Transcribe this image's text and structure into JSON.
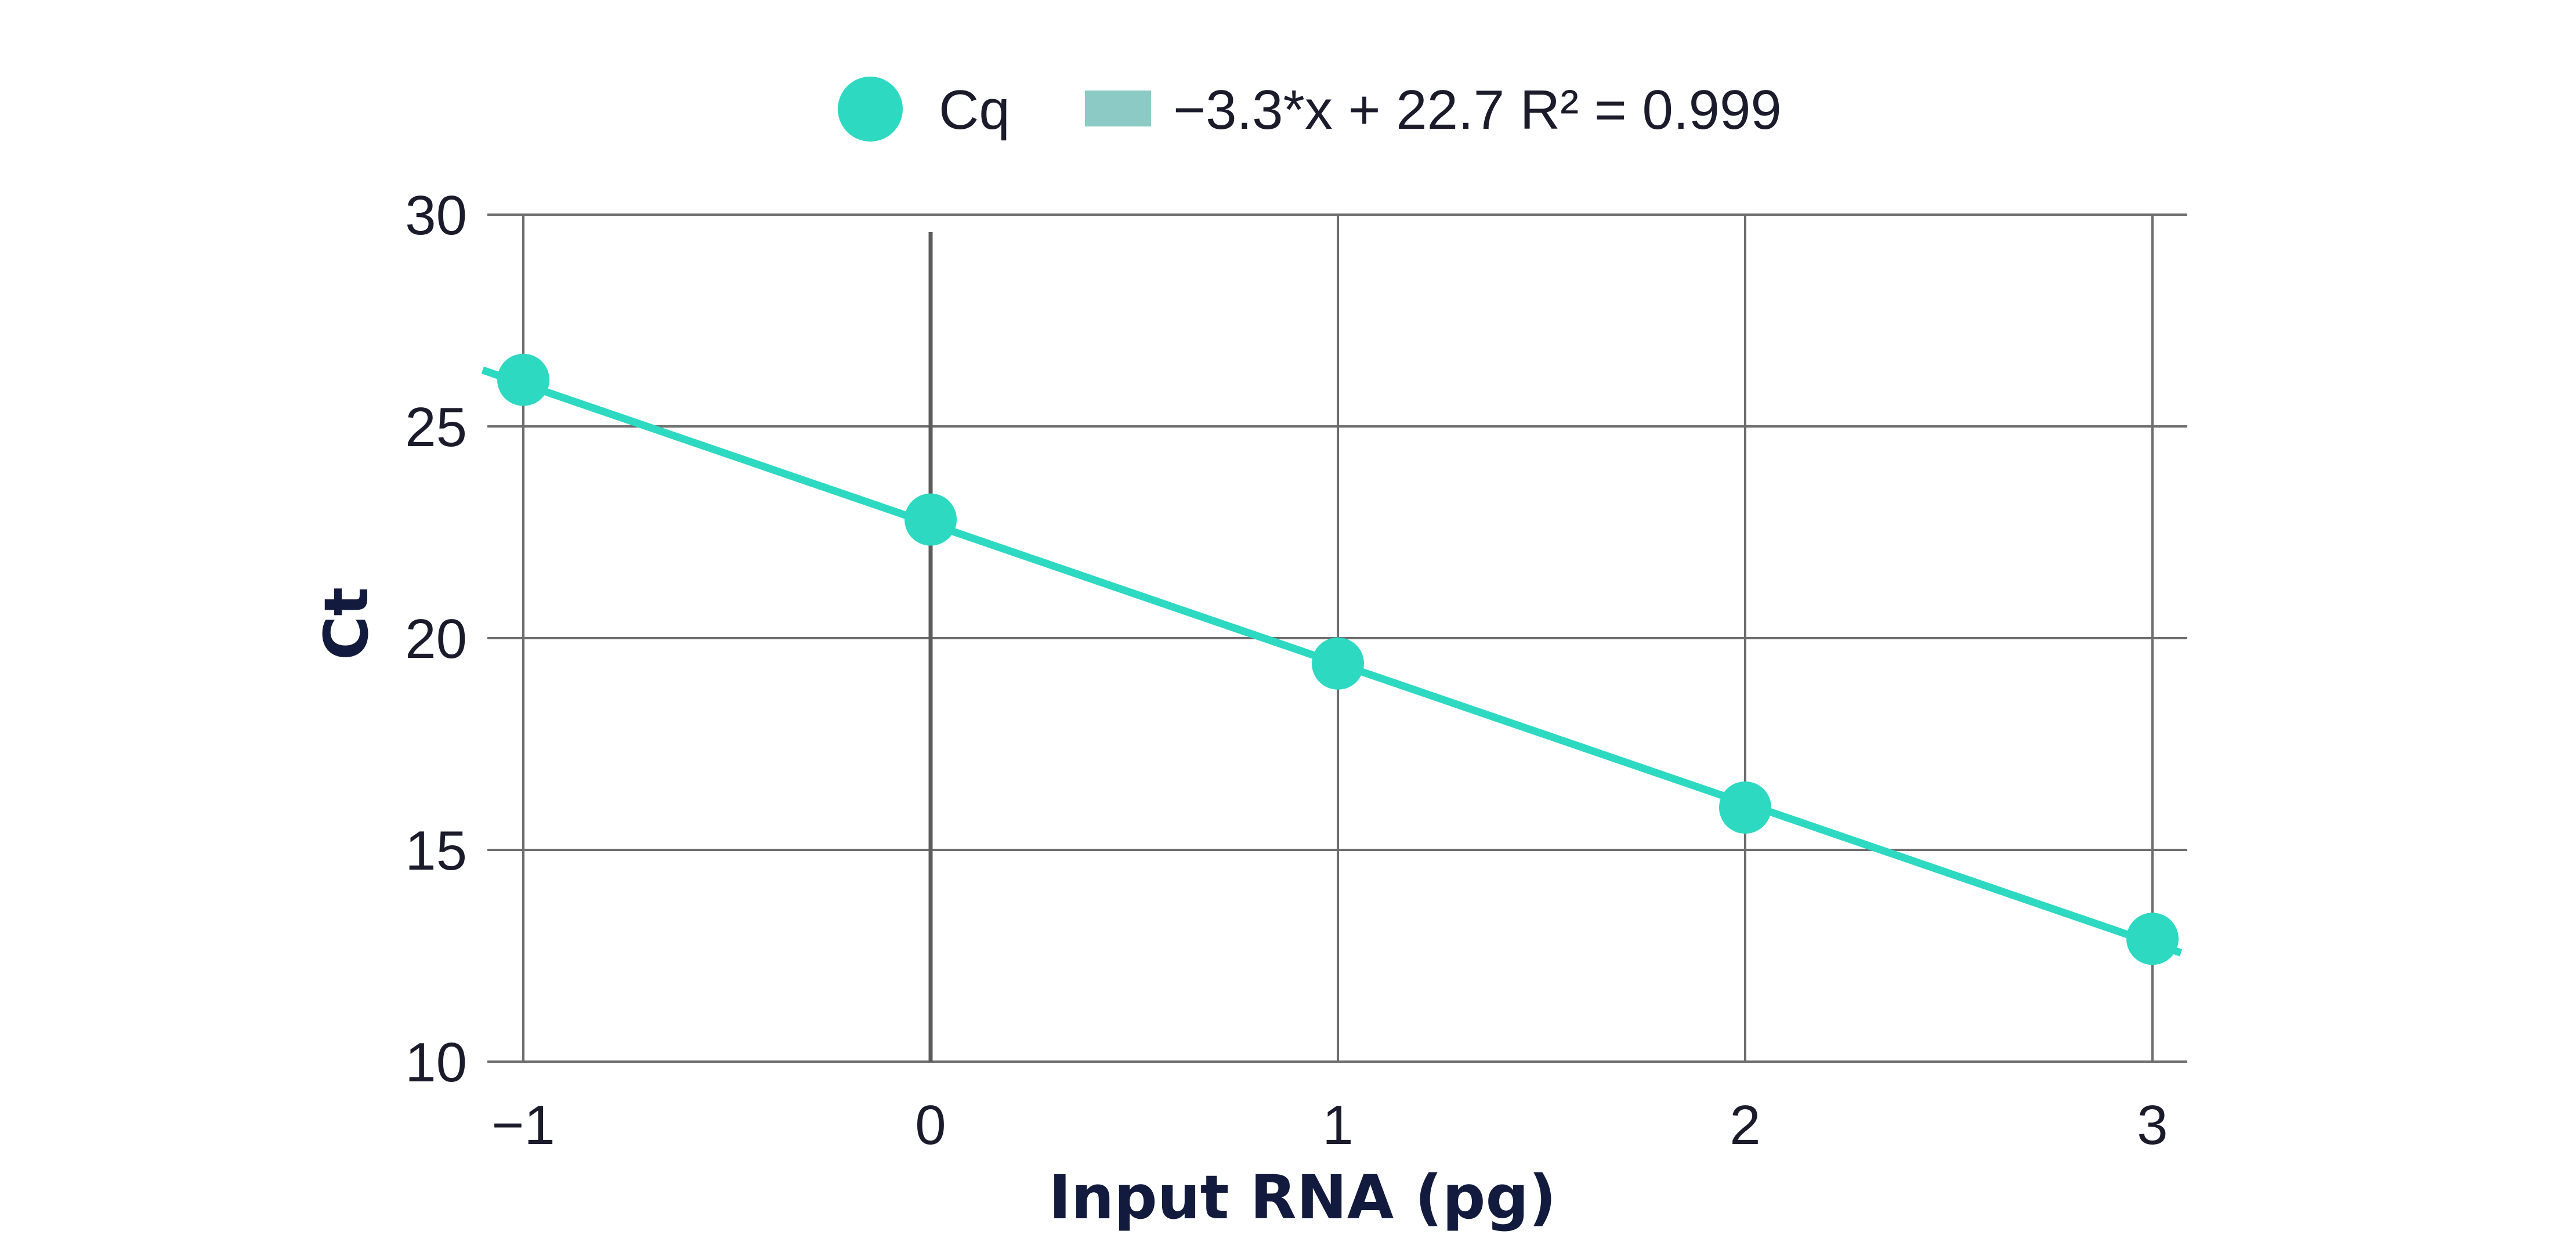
{
  "chart_data": {
    "type": "scatter",
    "xlabel": "Input RNA (pg)",
    "ylabel": "Ct",
    "xlim": [
      -1,
      3
    ],
    "ylim": [
      10,
      30
    ],
    "x_ticks": [
      "−1",
      "0",
      "1",
      "2",
      "3"
    ],
    "y_ticks": [
      "10",
      "15",
      "20",
      "25",
      "30"
    ],
    "grid": true,
    "legend_position": "top-center",
    "series": [
      {
        "name": "Cq",
        "kind": "scatter",
        "color": "#2dd9c1",
        "x": [
          -1,
          0,
          1,
          2,
          3
        ],
        "y": [
          26.1,
          22.8,
          19.4,
          16.0,
          12.9
        ]
      },
      {
        "name": "−3.3*x + 22.7 R² = 0.999",
        "kind": "line",
        "color": "#2dd9c1",
        "legend_color": "#8bcac5",
        "slope": -3.3,
        "intercept": 22.7,
        "x_range": [
          -1.1,
          3.07
        ]
      }
    ]
  }
}
